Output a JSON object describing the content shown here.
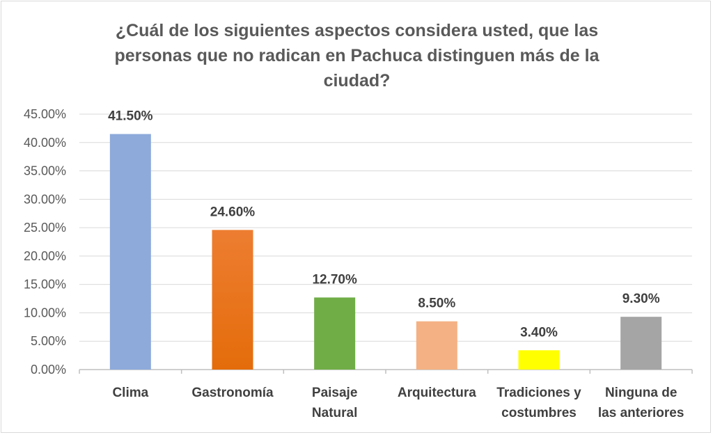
{
  "chart_data": {
    "type": "bar",
    "title": "¿Cuál de los siguientes aspectos considera usted, que las personas que no radican en Pachuca distinguen más de la ciudad?",
    "categories": [
      [
        "Clima"
      ],
      [
        "Gastronomía"
      ],
      [
        "Paisaje",
        "Natural"
      ],
      [
        "Arquitectura"
      ],
      [
        "Tradiciones y",
        "costumbres"
      ],
      [
        "Ninguna de",
        "las anteriores"
      ]
    ],
    "values": [
      41.5,
      24.6,
      12.7,
      8.5,
      3.4,
      9.3
    ],
    "data_labels": [
      "41.50%",
      "24.60%",
      "12.70%",
      "8.50%",
      "3.40%",
      "9.30%"
    ],
    "bar_colors": [
      "#8eaadb",
      "#ed7d31",
      "#70ad47",
      "#f4b183",
      "#ffff00",
      "#a5a5a5"
    ],
    "bar_gradient_bottom": [
      "#8eaadb",
      "#e46c0a",
      "#70ad47",
      "#f4b183",
      "#ffff00",
      "#a5a5a5"
    ],
    "ylim": [
      0,
      45
    ],
    "y_ticks": [
      0,
      5,
      10,
      15,
      20,
      25,
      30,
      35,
      40,
      45
    ],
    "y_tick_labels": [
      "0.00%",
      "5.00%",
      "10.00%",
      "15.00%",
      "20.00%",
      "25.00%",
      "30.00%",
      "35.00%",
      "40.00%",
      "45.00%"
    ],
    "grid": true,
    "gridline_color": "#d9d9d9",
    "xlabel": "",
    "ylabel": ""
  }
}
